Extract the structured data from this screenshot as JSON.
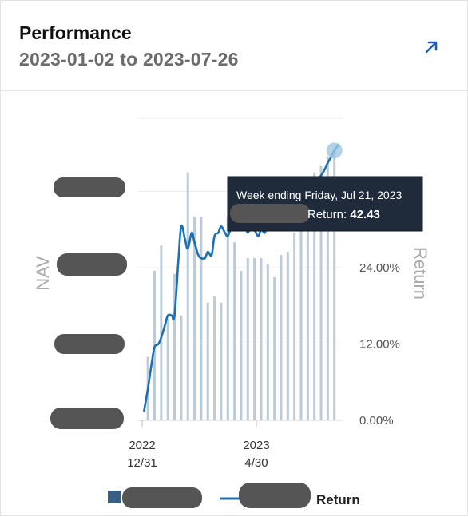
{
  "header": {
    "title": "Performance",
    "date_range": "2023-01-02 to 2023-07-26"
  },
  "icons": {
    "expand": "external-arrow-icon"
  },
  "colors": {
    "line": "#1a6fb5",
    "bars": "#bccbd6",
    "legend_square": "#3a5f82",
    "tooltip_bg": "#1f2a3a",
    "redaction": "#555555"
  },
  "chart_data": {
    "type": "bar+line",
    "left_axis_label": "NAV",
    "right_axis_label": "Return",
    "right_ticks": [
      "0.00%",
      "12.00%",
      "24.00%"
    ],
    "right_tick_values": [
      0,
      12,
      24
    ],
    "x_ticks": [
      {
        "line1": "2022",
        "line2": "12/31",
        "date": "2022-12-31"
      },
      {
        "line1": "2023",
        "line2": "4/30",
        "date": "2023-04-30"
      }
    ],
    "bars": {
      "dates": [
        "2023-01-06",
        "2023-01-13",
        "2023-01-20",
        "2023-01-27",
        "2023-02-03",
        "2023-02-10",
        "2023-02-17",
        "2023-02-24",
        "2023-03-03",
        "2023-03-10",
        "2023-03-17",
        "2023-03-24",
        "2023-03-31",
        "2023-04-07",
        "2023-04-14",
        "2023-04-21",
        "2023-04-28",
        "2023-05-05",
        "2023-05-12",
        "2023-05-19",
        "2023-05-26",
        "2023-06-02",
        "2023-06-09",
        "2023-06-16",
        "2023-06-23",
        "2023-06-30",
        "2023-07-07",
        "2023-07-14",
        "2023-07-21"
      ],
      "returns": [
        10,
        23.5,
        27.5,
        16,
        23,
        16.5,
        39,
        32,
        32,
        18.5,
        19.5,
        18.5,
        32,
        28,
        23.5,
        25.5,
        25.5,
        25.5,
        24.5,
        22.5,
        26,
        26.5,
        29.5,
        31.5,
        38,
        39,
        40,
        41.5,
        42.43
      ]
    },
    "line": {
      "name": "Return",
      "dates": [
        "2023-01-02",
        "2023-01-06",
        "2023-01-10",
        "2023-01-13",
        "2023-01-17",
        "2023-01-20",
        "2023-01-24",
        "2023-01-27",
        "2023-01-31",
        "2023-02-03",
        "2023-02-07",
        "2023-02-10",
        "2023-02-14",
        "2023-02-17",
        "2023-02-21",
        "2023-02-24",
        "2023-02-28",
        "2023-03-03",
        "2023-03-07",
        "2023-03-10",
        "2023-03-14",
        "2023-03-17",
        "2023-03-21",
        "2023-03-24",
        "2023-03-28",
        "2023-03-31",
        "2023-04-04",
        "2023-04-07",
        "2023-04-11",
        "2023-04-14",
        "2023-04-18",
        "2023-04-21",
        "2023-04-25",
        "2023-04-28",
        "2023-05-02",
        "2023-05-05",
        "2023-05-09",
        "2023-05-12",
        "2023-05-16",
        "2023-05-19",
        "2023-05-23",
        "2023-05-26",
        "2023-05-30",
        "2023-06-02",
        "2023-06-06",
        "2023-06-09",
        "2023-06-13",
        "2023-06-16",
        "2023-06-20",
        "2023-06-23",
        "2023-06-27",
        "2023-06-30",
        "2023-07-04",
        "2023-07-07",
        "2023-07-11",
        "2023-07-14",
        "2023-07-18",
        "2023-07-21",
        "2023-07-25"
      ],
      "returns": [
        1.5,
        5,
        9,
        11.5,
        12,
        13,
        15,
        16.5,
        16.5,
        16.5,
        25,
        30.5,
        28.5,
        27,
        29.5,
        28,
        26,
        25.5,
        25.5,
        26.5,
        26,
        29,
        29.5,
        30.5,
        29.5,
        29,
        30.5,
        31,
        32,
        32.5,
        31,
        29.5,
        31,
        30,
        29,
        30,
        29.5,
        31,
        30.5,
        31,
        31.5,
        32,
        31,
        31.5,
        32,
        33,
        32.5,
        33,
        34,
        35,
        36,
        37,
        38,
        38.5,
        39.5,
        40.5,
        41.5,
        42.43,
        43.3
      ]
    },
    "y_range": [
      0,
      45
    ],
    "legend": {
      "items": [
        "Return"
      ],
      "placement": "bottom"
    },
    "tooltip": {
      "date_label": "Week ending Friday, Jul 21, 2023",
      "return_label": "Return: ",
      "return_value": "42.43",
      "date": "2023-07-21",
      "value": 42.43
    }
  }
}
